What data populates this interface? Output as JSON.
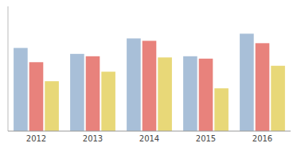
{
  "chart_data": {
    "type": "bar",
    "categories": [
      "2012",
      "2013",
      "2014",
      "2015",
      "2016"
    ],
    "series": [
      {
        "color": "#a8bfd8",
        "values": [
          7.0,
          6.5,
          7.8,
          6.3,
          8.2
        ]
      },
      {
        "color": "#e8827c",
        "values": [
          5.8,
          6.3,
          7.6,
          6.1,
          7.4
        ]
      },
      {
        "color": "#e8d878",
        "values": [
          4.2,
          5.0,
          6.2,
          3.6,
          5.5
        ]
      }
    ],
    "ylim": [
      0,
      10.5
    ],
    "yticks": [],
    "grid": false,
    "tick_labels": "x"
  }
}
